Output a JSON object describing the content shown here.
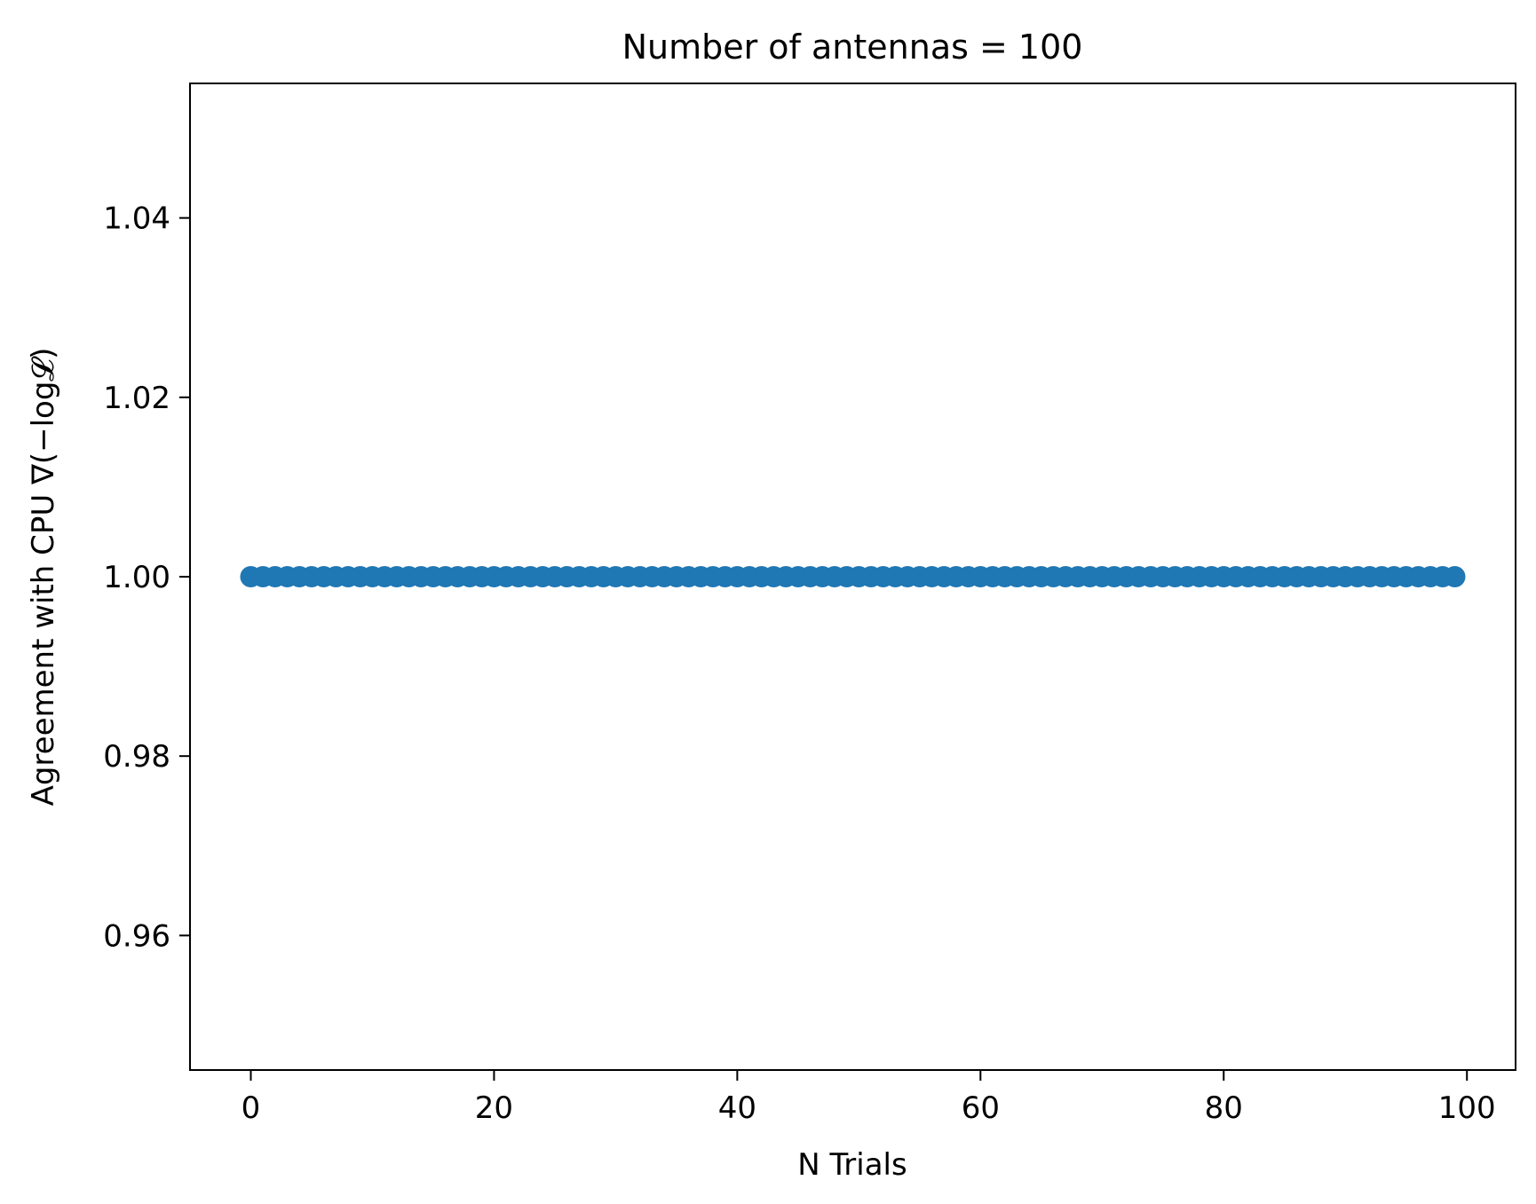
{
  "chart_data": {
    "type": "scatter",
    "title": "Number of antennas = 100",
    "xlabel": "N Trials",
    "ylabel": "Agreement with CPU ∇(−log𝓛)",
    "xlim": [
      -5,
      104
    ],
    "ylim": [
      0.945,
      1.055
    ],
    "xticks": [
      0,
      20,
      40,
      60,
      80,
      100
    ],
    "xtick_labels": [
      "0",
      "20",
      "40",
      "60",
      "80",
      "100"
    ],
    "yticks": [
      0.96,
      0.98,
      1.0,
      1.02,
      1.04
    ],
    "ytick_labels": [
      "0.96",
      "0.98",
      "1.00",
      "1.02",
      "1.04"
    ],
    "grid": false,
    "marker_color": "#1f77b4",
    "series": [
      {
        "x_start": 0,
        "x_end": 99,
        "x_step": 1,
        "y_constant": 1.0
      }
    ]
  }
}
